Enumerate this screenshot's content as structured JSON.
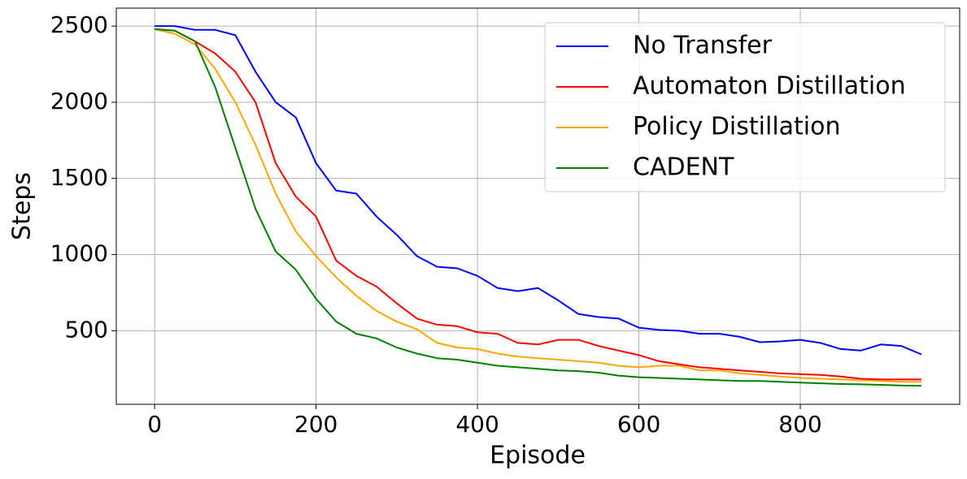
{
  "chart_data": {
    "type": "line",
    "x_label": "Episode",
    "y_label": "Steps",
    "x": [
      0,
      25,
      50,
      75,
      100,
      125,
      150,
      175,
      200,
      225,
      250,
      275,
      300,
      325,
      350,
      375,
      400,
      425,
      450,
      475,
      500,
      525,
      550,
      575,
      600,
      625,
      650,
      675,
      700,
      725,
      750,
      775,
      800,
      825,
      850,
      875,
      900,
      925,
      950
    ],
    "series": [
      {
        "name": "No Transfer",
        "color": "#0000ff",
        "values": [
          2500,
          2500,
          2475,
          2475,
          2440,
          2200,
          2000,
          1900,
          1600,
          1420,
          1400,
          1250,
          1130,
          990,
          920,
          910,
          860,
          780,
          760,
          780,
          700,
          610,
          590,
          580,
          520,
          505,
          500,
          480,
          480,
          460,
          425,
          430,
          440,
          420,
          380,
          370,
          410,
          400,
          345
        ]
      },
      {
        "name": "Automaton Distillation",
        "color": "#ff0000",
        "values": [
          2480,
          2470,
          2400,
          2320,
          2200,
          2000,
          1600,
          1380,
          1250,
          960,
          860,
          790,
          680,
          580,
          540,
          530,
          490,
          480,
          420,
          410,
          440,
          440,
          400,
          370,
          340,
          300,
          280,
          260,
          250,
          240,
          230,
          220,
          215,
          210,
          200,
          185,
          180,
          180,
          180
        ]
      },
      {
        "name": "Policy Distillation",
        "color": "#ffa500",
        "values": [
          2480,
          2450,
          2380,
          2220,
          2000,
          1720,
          1400,
          1150,
          990,
          850,
          730,
          630,
          560,
          510,
          420,
          390,
          380,
          350,
          330,
          320,
          310,
          300,
          290,
          270,
          260,
          270,
          270,
          240,
          240,
          220,
          210,
          200,
          190,
          185,
          180,
          175,
          170,
          165,
          165
        ]
      },
      {
        "name": "CADENT",
        "color": "#008000",
        "values": [
          2480,
          2470,
          2400,
          2100,
          1700,
          1300,
          1020,
          900,
          710,
          560,
          480,
          450,
          390,
          350,
          320,
          310,
          290,
          270,
          260,
          250,
          240,
          235,
          225,
          205,
          195,
          190,
          185,
          180,
          175,
          170,
          170,
          165,
          160,
          155,
          150,
          148,
          145,
          140,
          138
        ]
      }
    ],
    "xlim": [
      -47.5,
      997.5
    ],
    "ylim": [
      17,
      2618
    ],
    "xticks": [
      0,
      200,
      400,
      600,
      800
    ],
    "yticks": [
      500,
      1000,
      1500,
      2000,
      2500
    ],
    "grid": true,
    "legend_position": "upper right"
  }
}
